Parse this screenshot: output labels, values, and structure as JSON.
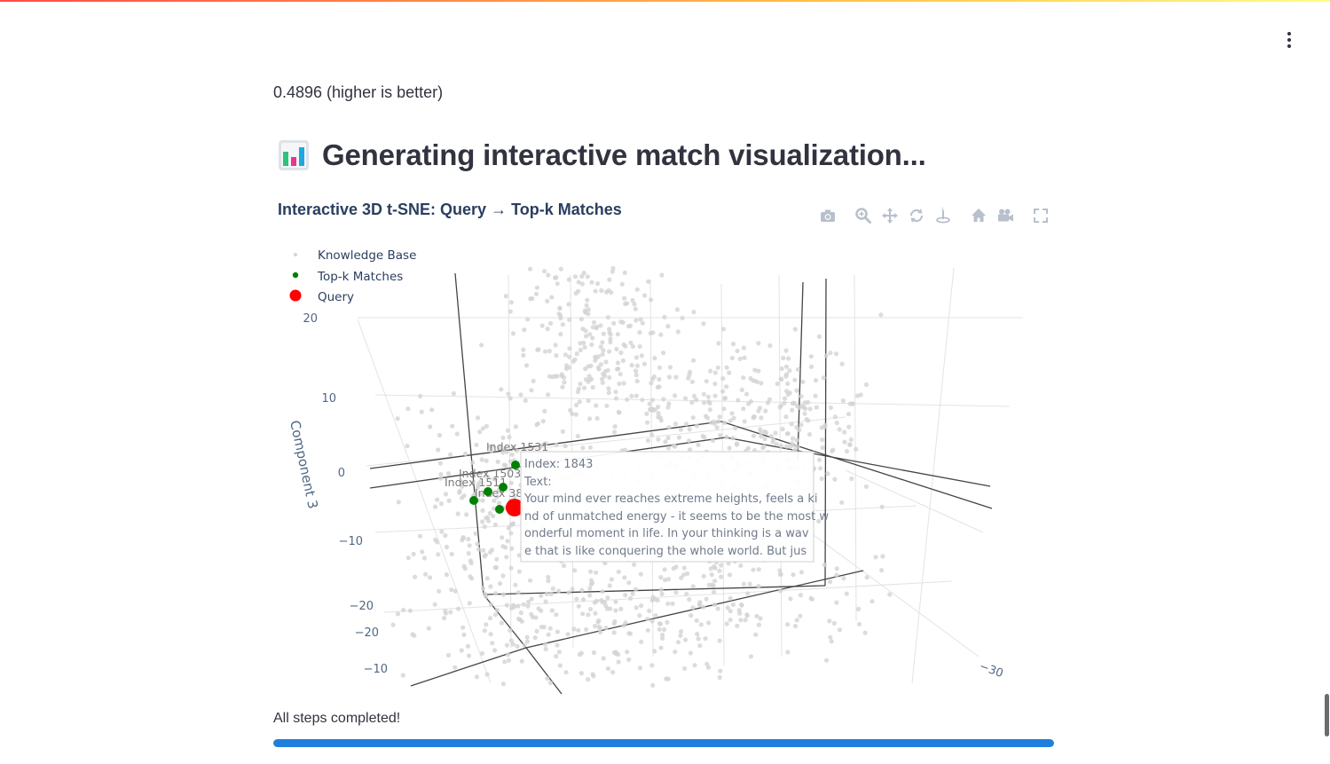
{
  "metric_text": "0.4896 (higher is better)",
  "section_heading": "Generating interactive match visualization...",
  "section_heading_icon": "bar-chart-emoji-icon",
  "menu": {
    "icon": "kebab-menu-icon"
  },
  "modebar": {
    "buttons": [
      "camera-icon",
      "zoom-icon",
      "pan-icon",
      "orbit-rotation-icon",
      "turntable-rotation-icon",
      "reset-camera-icon",
      "camera-view-icon",
      "fullscreen-icon"
    ]
  },
  "status_text": "All steps completed!",
  "progress": {
    "value": 1.0,
    "color": "#1f7fdc"
  },
  "chart_data": {
    "type": "scatter3d",
    "title": "Interactive 3D t-SNE: Query → Top-k Matches",
    "zlabel": "Component 3",
    "axis_tick_labels": {
      "z": [
        "20",
        "10",
        "0",
        "−10",
        "−20"
      ],
      "y": [
        "−20",
        "−10"
      ],
      "x": [
        "−30"
      ]
    },
    "legend_position": "top-left",
    "series": [
      {
        "name": "Knowledge Base",
        "color": "#d3d3d3",
        "approx_point_count": 1200
      },
      {
        "name": "Top-k Matches",
        "color": "#008000",
        "labels": [
          "Index 1531",
          "Index 1503",
          "Index 1511",
          "Index 38"
        ]
      },
      {
        "name": "Query",
        "color": "#ff0000"
      }
    ],
    "hover": {
      "lines": [
        "Index: 1843",
        "Text:",
        "Your mind ever reaches extreme heights, feels a ki",
        "nd of unmatched energy - it seems to be the most w",
        "onderful moment in life. In your thinking is a wav",
        "e that is like conquering the whole world. But jus"
      ]
    }
  }
}
